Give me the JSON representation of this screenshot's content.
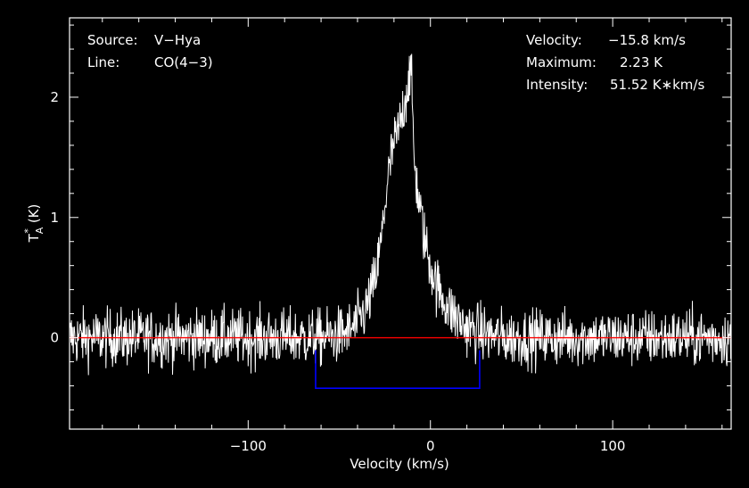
{
  "chart_data": {
    "type": "line",
    "xlabel": "Velocity (km/s)",
    "ylabel_main": "T",
    "ylabel_sub": "A",
    "ylabel_sup": "*",
    "ylabel_unit": "(K)",
    "xlim": [
      -198,
      165
    ],
    "ylim": [
      -0.76,
      2.66
    ],
    "xticks": [
      -100,
      0,
      100
    ],
    "xtick_labels": [
      "−100",
      "0",
      "100"
    ],
    "yticks": [
      0,
      1,
      2
    ],
    "ytick_labels": [
      "0",
      "1",
      "2"
    ],
    "colors": {
      "background": "#000000",
      "axes": "#ffffff",
      "spectrum": "#ffffff",
      "baseline": "#ff0000",
      "window": "#0000ff"
    },
    "baseline_y": 0,
    "integration_window": {
      "x_start": -63,
      "x_end": 27,
      "y_level": -0.42
    },
    "series": [
      {
        "x": [
          -198,
          -180,
          -160,
          -140,
          -120,
          -100,
          -80,
          -60,
          -50,
          -45,
          -40,
          -35,
          -30,
          -27,
          -25,
          -23,
          -21,
          -19,
          -17,
          -15,
          -13,
          -12,
          -11,
          -10,
          -9,
          -7,
          -5,
          -3,
          0,
          3,
          6,
          10,
          15,
          20,
          30,
          40,
          60,
          80,
          100,
          120,
          140,
          165
        ],
        "y": [
          0,
          0,
          0,
          0,
          0,
          0,
          0,
          0,
          0.02,
          0.05,
          0.12,
          0.25,
          0.5,
          0.8,
          1.1,
          1.35,
          1.55,
          1.65,
          1.75,
          1.9,
          2.05,
          2.15,
          2.23,
          2.0,
          1.5,
          1.2,
          1.0,
          0.8,
          0.6,
          0.45,
          0.35,
          0.25,
          0.15,
          0.08,
          0.03,
          0,
          0,
          0,
          0,
          0,
          0,
          0
        ],
        "noise_rms": 0.12
      }
    ],
    "source_label": "Source:",
    "source_value": "V−Hya",
    "line_label": "Line:",
    "line_value": "CO(4−3)",
    "velocity_label": "Velocity:",
    "velocity_value": "−15.8 km/s",
    "maximum_label": "Maximum:",
    "maximum_value": "2.23 K",
    "intensity_label": "Intensity:",
    "intensity_value": "51.52 K∗km/s"
  }
}
